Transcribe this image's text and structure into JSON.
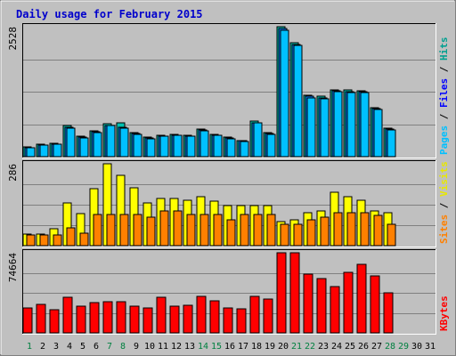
{
  "chart_data": {
    "type": "bar",
    "title": "Daily usage for February 2015",
    "categories": [
      "1",
      "2",
      "3",
      "4",
      "5",
      "6",
      "7",
      "8",
      "9",
      "10",
      "11",
      "12",
      "13",
      "14",
      "15",
      "16",
      "17",
      "18",
      "19",
      "20",
      "21",
      "22",
      "23",
      "24",
      "25",
      "26",
      "27",
      "28",
      "29",
      "30",
      "31"
    ],
    "weekend_days": [
      1,
      7,
      8,
      14,
      15,
      21,
      22,
      28,
      29
    ],
    "colors": {
      "title": "#0000cc",
      "weekday_label": "#000000",
      "weekend_label": "#008040",
      "hits": "#00c0b0",
      "files": "#0080ff",
      "pages": "#00c0ff",
      "visits": "#ffff00",
      "sites": "#ff8000",
      "kbytes": "#ff0000"
    },
    "panels": [
      {
        "id": "hits-files-pages",
        "max_label": "2528",
        "ylim": [
          0,
          2528
        ],
        "legend": [
          {
            "text": "Pages",
            "color": "#00c0ff"
          },
          {
            "text": " / ",
            "color": "#000000"
          },
          {
            "text": "Files",
            "color": "#0000ff"
          },
          {
            "text": " / ",
            "color": "#000000"
          },
          {
            "text": "Hits",
            "color": "#00a090"
          }
        ],
        "series": [
          {
            "name": "Hits",
            "values": [
              190,
              240,
              260,
              600,
              390,
              500,
              640,
              660,
              470,
              380,
              420,
              430,
              410,
              530,
              440,
              380,
              320,
              690,
              470,
              2528,
              2210,
              1200,
              1170,
              1300,
              1290,
              1280,
              960,
              550,
              0,
              0,
              0
            ]
          },
          {
            "name": "Files",
            "values": [
              180,
              230,
              250,
              580,
              380,
              490,
              610,
              570,
              450,
              360,
              400,
              420,
              400,
              520,
              420,
              360,
              310,
              660,
              450,
              2490,
              2190,
              1170,
              1140,
              1280,
              1270,
              1260,
              940,
              540,
              0,
              0,
              0
            ]
          },
          {
            "name": "Pages",
            "values": [
              170,
              220,
              240,
              560,
              360,
              470,
              600,
              560,
              430,
              350,
              390,
              410,
              390,
              510,
              410,
              350,
              300,
              650,
              440,
              2460,
              2160,
              1140,
              1120,
              1260,
              1250,
              1240,
              920,
              520,
              0,
              0,
              0
            ]
          }
        ]
      },
      {
        "id": "visits-sites",
        "max_label": "286",
        "ylim": [
          0,
          286
        ],
        "legend": [
          {
            "text": "Sites",
            "color": "#ff8000"
          },
          {
            "text": " / ",
            "color": "#000000"
          },
          {
            "text": "Visits",
            "color": "#e8e800"
          }
        ],
        "series": [
          {
            "name": "Visits",
            "values": [
              40,
              40,
              60,
              148,
              112,
              200,
              286,
              245,
              203,
              148,
              165,
              165,
              157,
              170,
              155,
              140,
              140,
              140,
              140,
              85,
              90,
              115,
              120,
              185,
              170,
              160,
              120,
              115,
              0,
              0,
              0
            ]
          },
          {
            "name": "Sites",
            "values": [
              38,
              36,
              38,
              63,
              45,
              110,
              110,
              110,
              110,
              100,
              120,
              120,
              110,
              110,
              110,
              90,
              110,
              110,
              110,
              75,
              75,
              90,
              100,
              115,
              115,
              115,
              105,
              75,
              0,
              0,
              0
            ]
          }
        ]
      },
      {
        "id": "kbytes",
        "max_label": "74664",
        "ylim": [
          0,
          74664
        ],
        "legend": [
          {
            "text": "KBytes",
            "color": "#ff0000"
          }
        ],
        "series": [
          {
            "name": "KBytes",
            "values": [
              23000,
              26500,
              21800,
              33000,
              25000,
              28000,
              29000,
              29000,
              25000,
              23500,
              33500,
              24500,
              26000,
              34000,
              30000,
              23000,
              22000,
              34000,
              31500,
              74664,
              74664,
              55000,
              51000,
              43000,
              56000,
              64000,
              53000,
              37500,
              0,
              0,
              0
            ]
          }
        ]
      }
    ]
  }
}
